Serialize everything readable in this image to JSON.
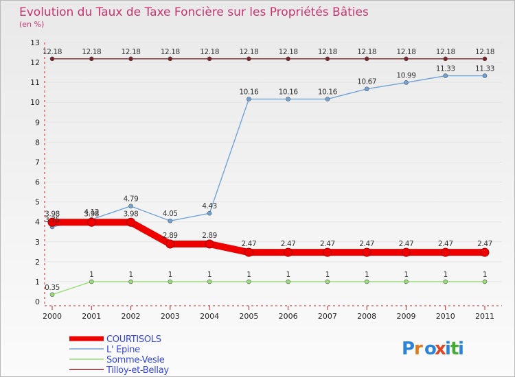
{
  "chart_data": {
    "type": "line",
    "title": "Evolution du Taux de Taxe Foncière sur les Propriétés Bâties",
    "subtitle": "(en %)",
    "xlabel": "",
    "ylabel": "",
    "ylim": [
      0,
      13
    ],
    "yticks": [
      "0",
      "1",
      "2",
      "3",
      "4",
      "5",
      "6",
      "7",
      "8",
      "9",
      "10",
      "11",
      "12",
      "13"
    ],
    "categories": [
      "2000",
      "2001",
      "2002",
      "2003",
      "2004",
      "2005",
      "2006",
      "2007",
      "2008",
      "2009",
      "2010",
      "2011"
    ],
    "series": [
      {
        "name": "Tilloy-et-Bellay",
        "color": "#7a2228",
        "values": [
          12.18,
          12.18,
          12.18,
          12.18,
          12.18,
          12.18,
          12.18,
          12.18,
          12.18,
          12.18,
          12.18,
          12.18
        ],
        "labels": [
          "12.18",
          "12.18",
          "12.18",
          "12.18",
          "12.18",
          "12.18",
          "12.18",
          "12.18",
          "12.18",
          "12.18",
          "12.18",
          "12.18"
        ]
      },
      {
        "name": "L' Epine",
        "color": "#6fa3d6",
        "values": [
          3.75,
          4.12,
          4.79,
          4.05,
          4.43,
          10.16,
          10.16,
          10.16,
          10.67,
          10.99,
          11.33,
          11.33
        ],
        "labels": [
          "3.75",
          "4.12",
          "4.79",
          "4.05",
          "4.43",
          "10.16",
          "10.16",
          "10.16",
          "10.67",
          "10.99",
          "11.33",
          "11.33"
        ]
      },
      {
        "name": "Somme-Vesle",
        "color": "#99dd77",
        "values": [
          0.35,
          1,
          1,
          1,
          1,
          1,
          1,
          1,
          1,
          1,
          1,
          1
        ],
        "labels": [
          "0.35",
          "1",
          "1",
          "1",
          "1",
          "1",
          "1",
          "1",
          "1",
          "1",
          "1",
          "1"
        ]
      },
      {
        "name": "COURTISOLS",
        "color": "#ee0000",
        "values": [
          3.98,
          3.98,
          3.98,
          2.89,
          2.89,
          2.47,
          2.47,
          2.47,
          2.47,
          2.47,
          2.47,
          2.47
        ],
        "labels": [
          "3.98",
          "3.98",
          "3.98",
          "2.89",
          "2.89",
          "2.47",
          "2.47",
          "2.47",
          "2.47",
          "2.47",
          "2.47",
          "2.47"
        ]
      }
    ],
    "legend": [
      "COURTISOLS",
      "L' Epine",
      "Somme-Vesle",
      "Tilloy-et-Bellay"
    ],
    "legend_position": "bottom-left"
  },
  "branding": {
    "logo": [
      "P",
      "r",
      "o",
      "x",
      "i",
      "t",
      "i"
    ]
  }
}
